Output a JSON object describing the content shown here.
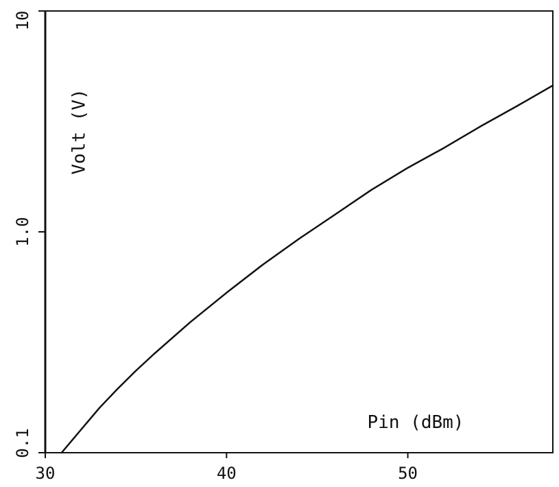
{
  "chart_data": {
    "type": "line",
    "xlabel": "Pin (dBm)",
    "ylabel": "Volt (V)",
    "xlim": [
      30,
      58
    ],
    "ylim": [
      0.1,
      10
    ],
    "y_scale": "log",
    "grid": false,
    "x_ticks": [
      {
        "value": 30,
        "label": "30"
      },
      {
        "value": 40,
        "label": "40"
      },
      {
        "value": 50,
        "label": "50"
      }
    ],
    "y_ticks": [
      {
        "value": 0.1,
        "label": "0.1"
      },
      {
        "value": 1.0,
        "label": "1.0"
      },
      {
        "value": 10,
        "label": "10"
      }
    ],
    "series": [
      {
        "x": [
          30.9,
          32,
          33,
          34,
          35,
          36,
          38,
          40,
          42,
          44,
          46,
          48,
          50,
          52,
          54,
          56,
          58
        ],
        "y": [
          0.1,
          0.128,
          0.16,
          0.195,
          0.235,
          0.28,
          0.39,
          0.53,
          0.71,
          0.93,
          1.2,
          1.55,
          1.95,
          2.4,
          3.0,
          3.7,
          4.6
        ]
      }
    ]
  },
  "colors": {
    "ink": "#111111",
    "background": "#ffffff"
  }
}
